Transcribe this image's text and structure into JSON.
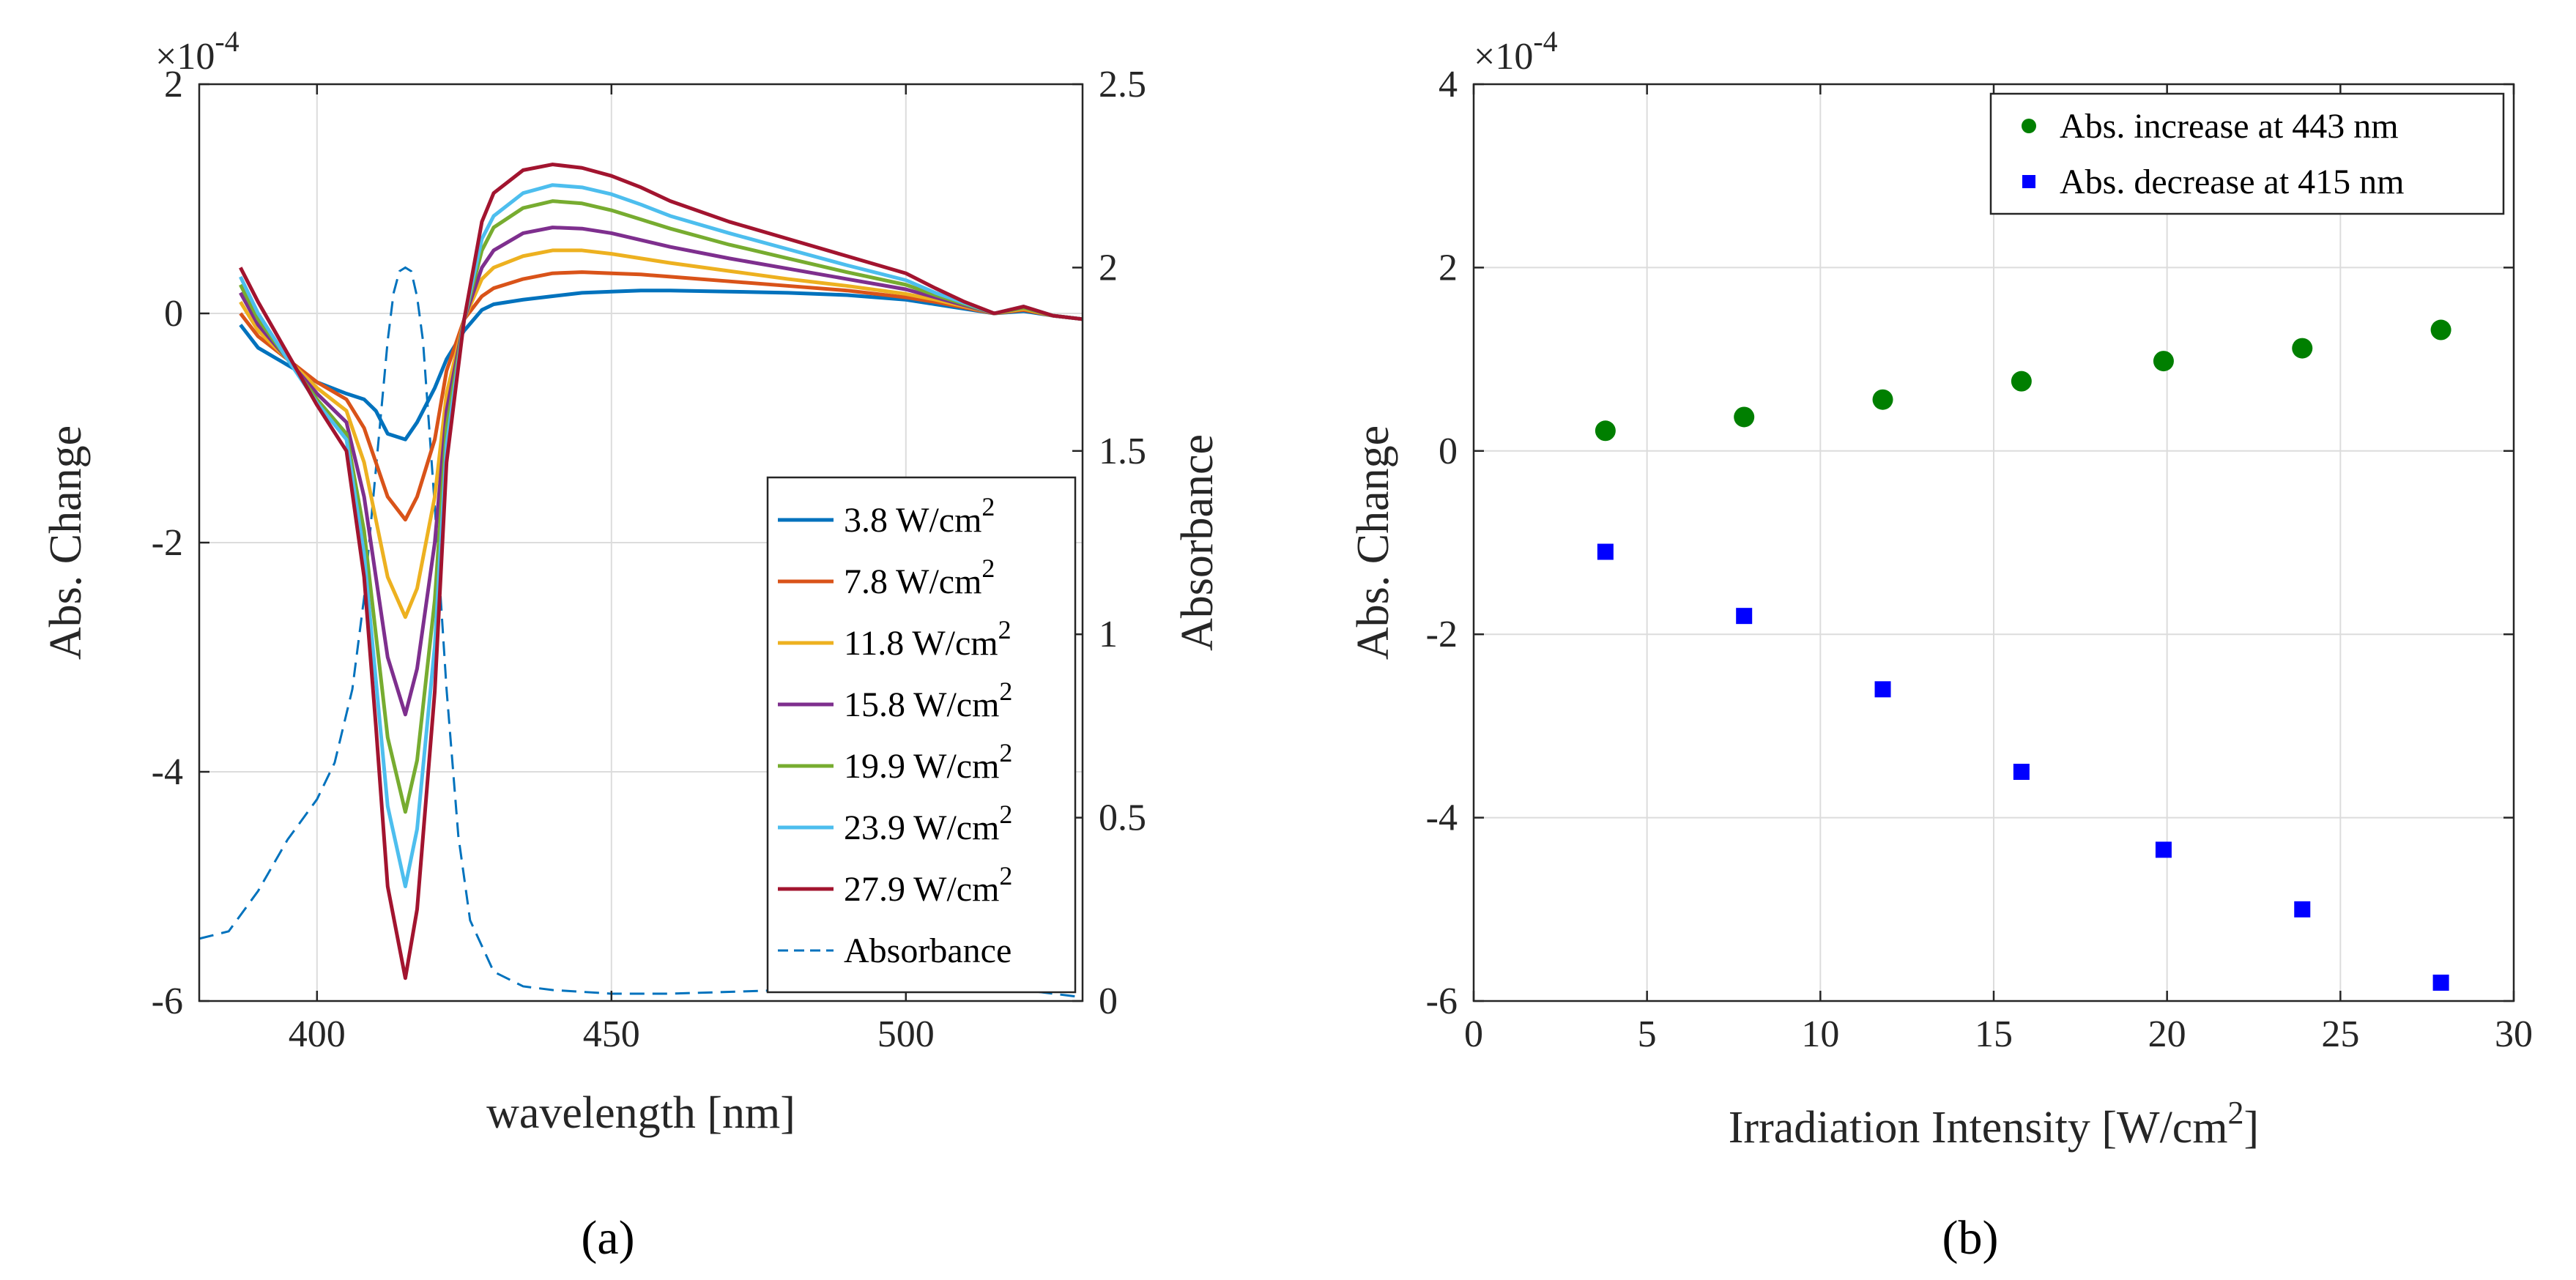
{
  "chart_data": [
    {
      "type": "line",
      "panel_label": "(a)",
      "xlabel": "wavelength [nm]",
      "ylabel_left": "Abs. Change",
      "ylabel_right": "Absorbance",
      "exponent_label": "×10",
      "exponent_power": "-4",
      "xlim": [
        380,
        530
      ],
      "ylim_left": [
        -6,
        2
      ],
      "ylim_right": [
        0,
        2.5
      ],
      "x_ticks": [
        400,
        450,
        500
      ],
      "x_tick_labels": [
        "400",
        "450",
        "500"
      ],
      "y_left_ticks": [
        -6,
        -4,
        -2,
        0,
        2
      ],
      "y_left_tick_labels": [
        "-6",
        "-4",
        "-2",
        "0",
        "2"
      ],
      "y_right_ticks": [
        0,
        0.5,
        1,
        1.5,
        2,
        2.5
      ],
      "y_right_tick_labels": [
        "0",
        "0.5",
        "1",
        "1.5",
        "2",
        "2.5"
      ],
      "grid": true,
      "legend_position": "lower-right",
      "x": [
        387,
        390,
        395,
        400,
        405,
        408,
        410,
        412,
        415,
        417,
        420,
        422,
        425,
        428,
        430,
        435,
        440,
        445,
        450,
        455,
        460,
        470,
        480,
        490,
        500,
        505,
        510,
        515,
        520,
        525,
        530
      ],
      "series": [
        {
          "name": "3.8 W/cm",
          "sup": "2",
          "color": "#0072BD",
          "values": [
            -0.1,
            -0.3,
            -0.45,
            -0.6,
            -0.7,
            -0.75,
            -0.85,
            -1.05,
            -1.1,
            -0.95,
            -0.65,
            -0.4,
            -0.15,
            0.03,
            0.08,
            0.12,
            0.15,
            0.18,
            0.19,
            0.2,
            0.2,
            0.19,
            0.18,
            0.16,
            0.12,
            0.08,
            0.04,
            0.0,
            0.02,
            -0.02,
            -0.05
          ]
        },
        {
          "name": "7.8 W/cm",
          "sup": "2",
          "color": "#D95319",
          "values": [
            0.0,
            -0.2,
            -0.4,
            -0.6,
            -0.75,
            -1.0,
            -1.3,
            -1.6,
            -1.8,
            -1.6,
            -1.1,
            -0.5,
            -0.05,
            0.15,
            0.22,
            0.3,
            0.35,
            0.36,
            0.35,
            0.34,
            0.32,
            0.28,
            0.24,
            0.2,
            0.14,
            0.1,
            0.05,
            0.0,
            0.03,
            -0.02,
            -0.05
          ]
        },
        {
          "name": "11.8 W/cm",
          "sup": "2",
          "color": "#EDB120",
          "values": [
            0.1,
            -0.15,
            -0.4,
            -0.65,
            -0.85,
            -1.3,
            -1.8,
            -2.3,
            -2.65,
            -2.4,
            -1.6,
            -0.7,
            -0.05,
            0.3,
            0.4,
            0.5,
            0.55,
            0.55,
            0.52,
            0.48,
            0.44,
            0.37,
            0.3,
            0.24,
            0.17,
            0.12,
            0.06,
            0.0,
            0.04,
            -0.02,
            -0.05
          ]
        },
        {
          "name": "15.8 W/cm",
          "sup": "2",
          "color": "#7E2F8E",
          "values": [
            0.18,
            -0.1,
            -0.4,
            -0.7,
            -0.95,
            -1.6,
            -2.3,
            -3.0,
            -3.5,
            -3.1,
            -2.0,
            -0.85,
            -0.05,
            0.4,
            0.55,
            0.7,
            0.75,
            0.74,
            0.7,
            0.64,
            0.58,
            0.48,
            0.39,
            0.3,
            0.21,
            0.14,
            0.07,
            0.0,
            0.05,
            -0.02,
            -0.05
          ]
        },
        {
          "name": "19.9 W/cm",
          "sup": "2",
          "color": "#77AC30",
          "values": [
            0.25,
            -0.05,
            -0.4,
            -0.75,
            -1.05,
            -1.9,
            -2.8,
            -3.7,
            -4.35,
            -3.9,
            -2.5,
            -1.0,
            -0.05,
            0.55,
            0.75,
            0.92,
            0.98,
            0.96,
            0.9,
            0.82,
            0.74,
            0.6,
            0.48,
            0.36,
            0.25,
            0.16,
            0.08,
            0.0,
            0.05,
            -0.02,
            -0.05
          ]
        },
        {
          "name": "23.9 W/cm",
          "sup": "2",
          "color": "#4DBEEE",
          "values": [
            0.32,
            0.0,
            -0.4,
            -0.78,
            -1.1,
            -2.1,
            -3.2,
            -4.3,
            -5.0,
            -4.5,
            -2.9,
            -1.15,
            -0.05,
            0.65,
            0.85,
            1.05,
            1.12,
            1.1,
            1.04,
            0.95,
            0.85,
            0.7,
            0.56,
            0.42,
            0.29,
            0.18,
            0.09,
            0.0,
            0.06,
            -0.02,
            -0.05
          ]
        },
        {
          "name": "27.9 W/cm",
          "sup": "2",
          "color": "#A2142F",
          "values": [
            0.4,
            0.1,
            -0.35,
            -0.8,
            -1.2,
            -2.3,
            -3.6,
            -5.0,
            -5.8,
            -5.2,
            -3.3,
            -1.3,
            -0.05,
            0.8,
            1.05,
            1.25,
            1.3,
            1.27,
            1.2,
            1.1,
            0.98,
            0.8,
            0.65,
            0.5,
            0.35,
            0.22,
            0.1,
            0.0,
            0.06,
            -0.02,
            -0.05
          ]
        }
      ],
      "absorbance": {
        "name": "Absorbance",
        "color": "#0072BD",
        "x": [
          380,
          385,
          390,
          395,
          400,
          403,
          406,
          408,
          410,
          412,
          413,
          414,
          415,
          416,
          417,
          418,
          420,
          422,
          424,
          426,
          430,
          435,
          440,
          450,
          460,
          480,
          500,
          510,
          520,
          530
        ],
        "values": [
          0.17,
          0.19,
          0.3,
          0.44,
          0.55,
          0.65,
          0.85,
          1.1,
          1.45,
          1.8,
          1.93,
          1.99,
          2.0,
          1.99,
          1.92,
          1.8,
          1.35,
          0.85,
          0.45,
          0.22,
          0.08,
          0.04,
          0.03,
          0.02,
          0.02,
          0.03,
          0.04,
          0.05,
          0.03,
          0.01
        ]
      }
    },
    {
      "type": "scatter",
      "panel_label": "(b)",
      "xlabel": "Irradiation Intensity [W/cm",
      "xlabel_sup": "2",
      "xlabel_suffix": "]",
      "ylabel": "Abs. Change",
      "exponent_label": "×10",
      "exponent_power": "-4",
      "xlim": [
        0,
        30
      ],
      "ylim": [
        -6,
        4
      ],
      "x_ticks": [
        0,
        5,
        10,
        15,
        20,
        25,
        30
      ],
      "x_tick_labels": [
        "0",
        "5",
        "10",
        "15",
        "20",
        "25",
        "30"
      ],
      "y_ticks": [
        -6,
        -4,
        -2,
        0,
        2,
        4
      ],
      "y_tick_labels": [
        "-6",
        "-4",
        "-2",
        "0",
        "2",
        "4"
      ],
      "grid": true,
      "legend_position": "top-right",
      "series": [
        {
          "name": "Abs. increase at 443 nm",
          "marker": "circle",
          "color": "#007F00",
          "x": [
            3.8,
            7.8,
            11.8,
            15.8,
            19.9,
            23.9,
            27.9
          ],
          "values": [
            0.22,
            0.37,
            0.56,
            0.76,
            0.98,
            1.12,
            1.32
          ]
        },
        {
          "name": "Abs. decrease at 415 nm",
          "marker": "square",
          "color": "#0000FF",
          "x": [
            3.8,
            7.8,
            11.8,
            15.8,
            19.9,
            23.9,
            27.9
          ],
          "values": [
            -1.1,
            -1.8,
            -2.6,
            -3.5,
            -4.35,
            -5.0,
            -5.8
          ]
        }
      ]
    }
  ]
}
